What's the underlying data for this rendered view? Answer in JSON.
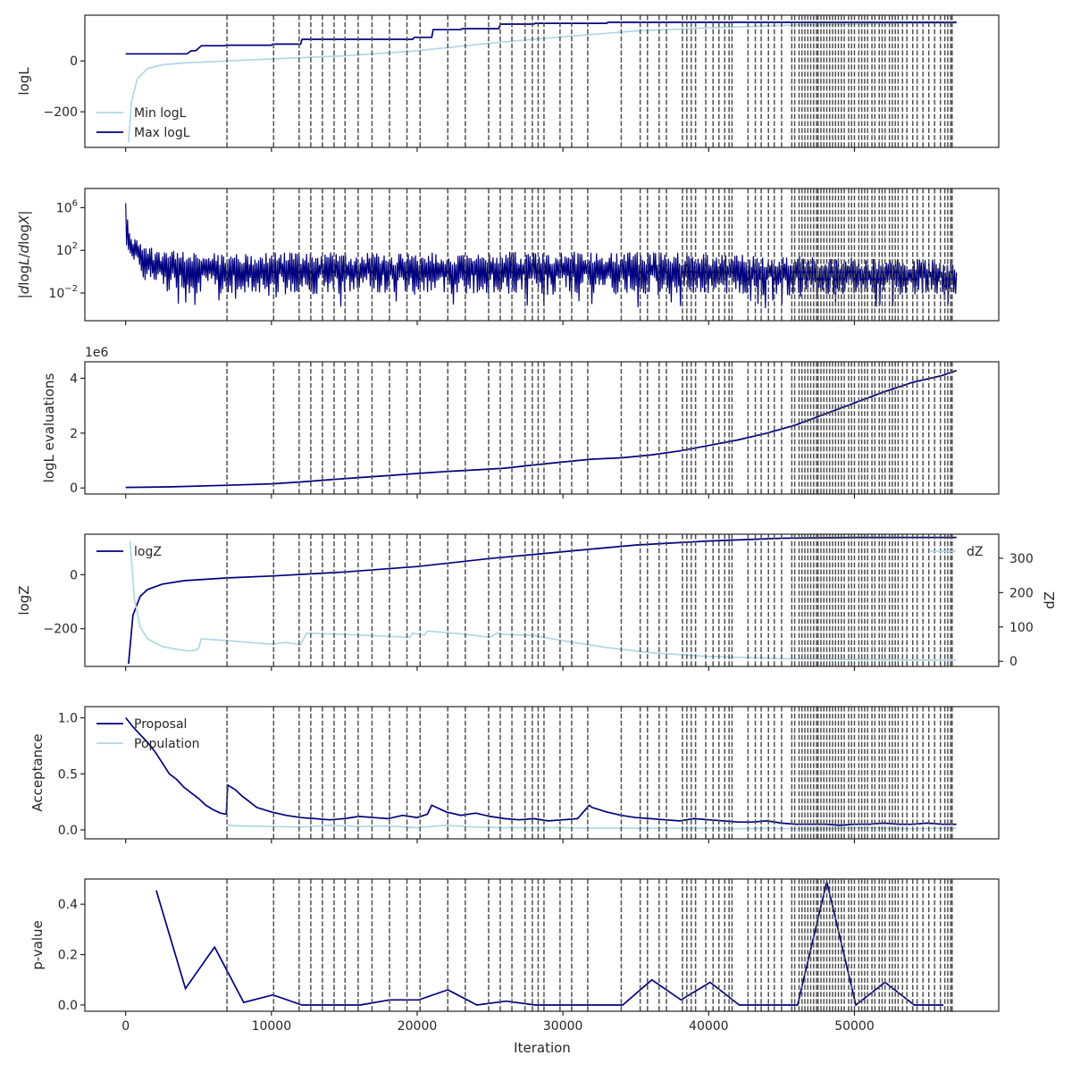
{
  "figure": {
    "xlabel": "Iteration"
  },
  "colors": {
    "dark": "#000080",
    "light": "#add8e6",
    "vline": "#505050",
    "axis": "#262626"
  },
  "chart_data": [
    {
      "type": "line",
      "ylabel": "logL",
      "xlim": [
        -2800,
        59900
      ],
      "ylim": [
        -340,
        180
      ],
      "yticks": [
        -200,
        0
      ],
      "ytick_labels": [
        "−200",
        "0"
      ],
      "legend": "lower-left",
      "series": [
        {
          "name": "Min logL",
          "color": "light",
          "x": [
            200,
            400,
            800,
            1500,
            2500,
            4000,
            7000,
            10000,
            15000,
            20000,
            25000,
            30000,
            35000,
            40000,
            45000,
            50000,
            55000,
            57000
          ],
          "y": [
            -320,
            -160,
            -70,
            -30,
            -15,
            -8,
            0,
            8,
            20,
            40,
            70,
            95,
            118,
            130,
            140,
            145,
            148,
            149
          ]
        },
        {
          "name": "Max logL",
          "color": "dark",
          "x": [
            0,
            4200,
            4500,
            4800,
            5200,
            6800,
            6900,
            10000,
            10100,
            12000,
            12100,
            19700,
            19800,
            21000,
            21100,
            23000,
            23100,
            25600,
            25700,
            28000,
            28100,
            33000,
            33100,
            57000
          ],
          "y": [
            28,
            28,
            40,
            40,
            60,
            60,
            62,
            62,
            66,
            66,
            85,
            85,
            93,
            93,
            123,
            123,
            127,
            127,
            145,
            145,
            148,
            148,
            152,
            152
          ]
        }
      ]
    },
    {
      "type": "line",
      "ylabel": "|dlogL/dlogX|",
      "scale": "log",
      "xlim": [
        -2800,
        59900
      ],
      "ylim_exp": [
        -4.6,
        7.8
      ],
      "yticks_exp": [
        -2,
        2,
        6
      ],
      "ytick_labels": [
        "10",
        "10",
        "10"
      ],
      "ytick_exps": [
        "−2",
        "2",
        "6"
      ],
      "series": [
        {
          "name": "",
          "color": "dark",
          "x": [
            0,
            200,
            500,
            1000,
            1500,
            2000,
            3000,
            5000,
            8000,
            12000,
            20000,
            30000,
            38000,
            44000,
            48000,
            52000,
            57000
          ],
          "y_upper_exp": [
            7.0,
            4.5,
            3.4,
            2.8,
            2.4,
            2.2,
            2.0,
            1.8,
            1.8,
            1.8,
            1.8,
            1.9,
            1.8,
            1.6,
            1.4,
            1.2,
            1.1
          ],
          "y_lower_exp": [
            2.0,
            1.5,
            0.0,
            -1.0,
            -1.5,
            -2.0,
            -2.3,
            -2.5,
            -2.5,
            -2.5,
            -2.5,
            -2.6,
            -2.6,
            -2.7,
            -2.7,
            -2.7,
            -2.5
          ]
        }
      ]
    },
    {
      "type": "line",
      "ylabel": "logL evaluations",
      "offset_label": "1e6",
      "xlim": [
        -2800,
        59900
      ],
      "ylim": [
        -0.22,
        4.6
      ],
      "yticks": [
        0,
        2,
        4
      ],
      "ytick_labels": [
        "0",
        "2",
        "4"
      ],
      "series": [
        {
          "name": "",
          "color": "dark",
          "x": [
            0,
            3000,
            7000,
            10000,
            12000,
            14000,
            16000,
            18000,
            20000,
            22000,
            24000,
            26000,
            28000,
            30000,
            32000,
            34000,
            36000,
            38000,
            40000,
            42000,
            44000,
            46000,
            48000,
            50000,
            52000,
            54000,
            56000,
            57000
          ],
          "y": [
            0.02,
            0.04,
            0.1,
            0.15,
            0.22,
            0.3,
            0.38,
            0.45,
            0.53,
            0.6,
            0.66,
            0.72,
            0.84,
            0.95,
            1.05,
            1.1,
            1.2,
            1.35,
            1.55,
            1.75,
            2.0,
            2.3,
            2.7,
            3.1,
            3.5,
            3.85,
            4.1,
            4.28
          ]
        }
      ]
    },
    {
      "type": "line",
      "ylabel": "logZ",
      "ylabel2": "dZ",
      "xlim": [
        -2800,
        59900
      ],
      "ylim": [
        -340,
        150
      ],
      "yticks": [
        -200,
        0
      ],
      "ytick_labels": [
        "−200",
        "0"
      ],
      "ylim2": [
        -15,
        370
      ],
      "yticks2": [
        0,
        100,
        200,
        300
      ],
      "ytick2_labels": [
        "0",
        "100",
        "200",
        "300"
      ],
      "legend": "upper-left",
      "legend2": "upper-right",
      "series": [
        {
          "name": "logZ",
          "color": "dark",
          "axis": "left",
          "x": [
            200,
            500,
            1000,
            1500,
            2500,
            4000,
            7000,
            10000,
            15000,
            20000,
            25000,
            30000,
            35000,
            40000,
            45000,
            50000,
            57000
          ],
          "y": [
            -330,
            -150,
            -80,
            -55,
            -35,
            -22,
            -12,
            -5,
            10,
            30,
            60,
            85,
            110,
            125,
            135,
            138,
            138
          ]
        },
        {
          "name": "dZ",
          "color": "light",
          "axis": "right",
          "x": [
            300,
            600,
            1000,
            1500,
            2500,
            3500,
            4300,
            4800,
            5000,
            5200,
            7000,
            10000,
            11000,
            12000,
            12400,
            15000,
            19500,
            19700,
            20500,
            20700,
            23000,
            25000,
            25500,
            26000,
            28000,
            30000,
            33000,
            36000,
            40000,
            45000,
            50000,
            57000
          ],
          "y": [
            350,
            180,
            100,
            65,
            43,
            35,
            30,
            32,
            38,
            65,
            60,
            50,
            55,
            48,
            82,
            78,
            70,
            82,
            76,
            88,
            80,
            70,
            82,
            78,
            75,
            60,
            40,
            25,
            14,
            8,
            5,
            3
          ]
        }
      ]
    },
    {
      "type": "line",
      "ylabel": "Acceptance",
      "xlim": [
        -2800,
        59900
      ],
      "ylim": [
        -0.08,
        1.1
      ],
      "yticks": [
        0,
        0.5,
        1
      ],
      "ytick_labels": [
        "0.0",
        "0.5",
        "1.0"
      ],
      "legend": "upper-left",
      "series": [
        {
          "name": "Proposal",
          "color": "dark",
          "x": [
            0,
            500,
            1000,
            1500,
            2000,
            2500,
            3000,
            3500,
            4000,
            4500,
            5000,
            5500,
            6000,
            6500,
            6900,
            7000,
            7500,
            8000,
            8500,
            9000,
            10000,
            11000,
            12000,
            13000,
            14000,
            15000,
            16000,
            17000,
            18000,
            19000,
            20000,
            20700,
            21000,
            22000,
            23000,
            24000,
            25000,
            26000,
            27000,
            28000,
            29000,
            30000,
            31000,
            31800,
            32000,
            33000,
            34000,
            35000,
            36000,
            37000,
            38000,
            39000,
            40000,
            41000,
            42000,
            43000,
            44000,
            45000,
            46000,
            47000,
            48000,
            49000,
            50000,
            51000,
            52000,
            53000,
            54000,
            55000,
            56000,
            57000
          ],
          "y": [
            1.0,
            0.92,
            0.85,
            0.78,
            0.7,
            0.6,
            0.5,
            0.45,
            0.38,
            0.33,
            0.28,
            0.22,
            0.18,
            0.15,
            0.14,
            0.4,
            0.36,
            0.3,
            0.25,
            0.2,
            0.16,
            0.13,
            0.11,
            0.1,
            0.09,
            0.1,
            0.12,
            0.11,
            0.1,
            0.13,
            0.11,
            0.14,
            0.22,
            0.16,
            0.13,
            0.15,
            0.12,
            0.1,
            0.09,
            0.1,
            0.08,
            0.09,
            0.1,
            0.22,
            0.2,
            0.16,
            0.13,
            0.11,
            0.1,
            0.09,
            0.08,
            0.1,
            0.09,
            0.08,
            0.07,
            0.07,
            0.08,
            0.06,
            0.05,
            0.05,
            0.05,
            0.04,
            0.05,
            0.05,
            0.06,
            0.05,
            0.05,
            0.06,
            0.05,
            0.05
          ]
        },
        {
          "name": "Population",
          "color": "light",
          "x": [
            7000,
            8000,
            10000,
            12000,
            14000,
            16000,
            18000,
            20000,
            22000,
            24000,
            26000,
            28000,
            30000,
            32000,
            34000,
            36000,
            38000,
            40000,
            42000,
            44000,
            46000,
            48000,
            50000,
            52000,
            54000,
            56000,
            57000
          ],
          "y": [
            0.04,
            0.035,
            0.03,
            0.025,
            0.04,
            0.03,
            0.035,
            0.02,
            0.04,
            0.025,
            0.02,
            0.02,
            0.02,
            0.015,
            0.015,
            0.015,
            0.015,
            0.015,
            0.01,
            0.015,
            0.01,
            0.01,
            0.02,
            0.015,
            0.01,
            0.015,
            0.015
          ]
        }
      ]
    },
    {
      "type": "line",
      "ylabel": "p-value",
      "xlim": [
        -2800,
        59900
      ],
      "ylim": [
        -0.025,
        0.5
      ],
      "yticks": [
        0,
        0.2,
        0.4
      ],
      "ytick_labels": [
        "0.0",
        "0.2",
        "0.4"
      ],
      "xticks": [
        0,
        10000,
        20000,
        30000,
        40000,
        50000
      ],
      "xtick_labels": [
        "0",
        "10000",
        "20000",
        "30000",
        "40000",
        "50000"
      ],
      "series": [
        {
          "name": "",
          "color": "dark",
          "x": [
            2100,
            4100,
            6100,
            8100,
            10100,
            12100,
            14100,
            16100,
            18100,
            20100,
            22100,
            24100,
            26100,
            28100,
            30100,
            32100,
            34100,
            36100,
            38100,
            40100,
            42100,
            44100,
            46100,
            48100,
            50100,
            52100,
            54100,
            56100
          ],
          "y": [
            0.455,
            0.065,
            0.23,
            0.01,
            0.04,
            0.0,
            0.0,
            0.0,
            0.02,
            0.02,
            0.06,
            0.0,
            0.015,
            0.0,
            0.0,
            0.0,
            0.0,
            0.1,
            0.02,
            0.09,
            0.0,
            0.0,
            0.0,
            0.49,
            0.0,
            0.09,
            0.0,
            0.0
          ]
        }
      ]
    }
  ],
  "shared_vlines": [
    6950,
    10150,
    11900,
    12700,
    13500,
    14300,
    15050,
    15950,
    16900,
    18100,
    19300,
    20200,
    22100,
    23300,
    24900,
    25700,
    26500,
    27400,
    27900,
    28300,
    28700,
    29800,
    30600,
    31700,
    34000,
    35300,
    35800,
    36600,
    37100,
    38200,
    38500,
    38800,
    39100,
    39800,
    40300,
    40700,
    41100,
    41400,
    41600,
    42700,
    43200,
    43600,
    44100,
    44500,
    45000,
    45700,
    45900,
    46200,
    46400,
    46600,
    46800,
    47000,
    47200,
    47400,
    47500,
    47700,
    47900,
    48100,
    48300,
    48500,
    48700,
    48900,
    49100,
    49300,
    49600,
    49800,
    50000,
    50300,
    50500,
    50700,
    50900,
    51200,
    51400,
    51700,
    51900,
    52100,
    52400,
    52600,
    52800,
    53000,
    53300,
    53600,
    54000,
    54300,
    54700,
    55100,
    55500,
    55900,
    56200,
    56400,
    56600,
    56700
  ]
}
